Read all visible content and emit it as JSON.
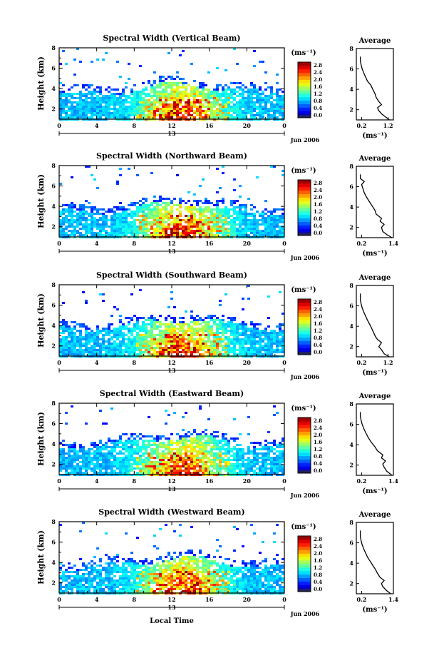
{
  "figure": {
    "x_axis_label": "Local Time",
    "date_label": "Jun 2006",
    "mid_day_label": "13",
    "height_label": "Height (km)",
    "colorbar_unit": "(ms⁻¹)",
    "avg_title": "Average",
    "avg_unit": "(ms⁻¹)"
  },
  "chart_data": [
    {
      "type": "heatmap",
      "title": "Spectral Width (Vertical Beam)",
      "xlabel": "",
      "ylabel": "Height (km)",
      "x_ticks": [
        "0",
        "4",
        "8",
        "12",
        "16",
        "20",
        "0"
      ],
      "xlim": [
        0,
        24
      ],
      "y_ticks": [
        "2",
        "4",
        "6",
        "8"
      ],
      "ylim": [
        1,
        8
      ],
      "colorbar": {
        "ticks": [
          "0.0",
          "0.4",
          "0.8",
          "1.2",
          "1.6",
          "2.0",
          "2.4",
          "2.8"
        ],
        "range": [
          0,
          3.0
        ]
      },
      "profile": {
        "title": "Average",
        "xlim": [
          0.0,
          1.4
        ],
        "x_ticks": [
          "0.2",
          "1.2"
        ],
        "y_ticks": [
          "2",
          "4",
          "6",
          "8"
        ],
        "points": [
          [
            1.25,
            1.0
          ],
          [
            1.1,
            1.3
          ],
          [
            0.95,
            1.6
          ],
          [
            0.85,
            1.9
          ],
          [
            0.8,
            2.2
          ],
          [
            0.95,
            2.5
          ],
          [
            0.85,
            2.8
          ],
          [
            0.75,
            3.2
          ],
          [
            0.7,
            3.6
          ],
          [
            0.62,
            4.0
          ],
          [
            0.55,
            4.4
          ],
          [
            0.42,
            4.8
          ],
          [
            0.35,
            5.2
          ],
          [
            0.28,
            5.6
          ],
          [
            0.22,
            6.0
          ],
          [
            0.18,
            6.4
          ],
          [
            0.15,
            6.8
          ],
          [
            0.15,
            7.2
          ]
        ]
      }
    },
    {
      "type": "heatmap",
      "title": "Spectral Width (Northward Beam)",
      "xlabel": "",
      "ylabel": "Height (km)",
      "x_ticks": [
        "0",
        "4",
        "8",
        "12",
        "16",
        "20",
        "0"
      ],
      "xlim": [
        0,
        24
      ],
      "y_ticks": [
        "2",
        "4",
        "6",
        "8"
      ],
      "ylim": [
        1,
        8
      ],
      "colorbar": {
        "ticks": [
          "0.0",
          "0.4",
          "0.8",
          "1.2",
          "1.6",
          "2.0",
          "2.4",
          "2.8"
        ],
        "range": [
          0,
          3.0
        ]
      },
      "profile": {
        "title": "Average",
        "xlim": [
          0.0,
          1.4
        ],
        "x_ticks": [
          "0.2",
          "1.4"
        ],
        "y_ticks": [
          "2",
          "4",
          "6",
          "8"
        ],
        "points": [
          [
            1.35,
            1.0
          ],
          [
            1.15,
            1.3
          ],
          [
            1.0,
            1.6
          ],
          [
            0.95,
            2.0
          ],
          [
            1.05,
            2.3
          ],
          [
            0.9,
            2.6
          ],
          [
            0.95,
            2.9
          ],
          [
            0.75,
            3.3
          ],
          [
            0.7,
            3.7
          ],
          [
            0.6,
            4.1
          ],
          [
            0.5,
            4.5
          ],
          [
            0.38,
            5.0
          ],
          [
            0.3,
            5.4
          ],
          [
            0.25,
            5.8
          ],
          [
            0.2,
            6.2
          ],
          [
            0.3,
            6.5
          ],
          [
            0.15,
            6.8
          ],
          [
            0.15,
            7.2
          ]
        ]
      }
    },
    {
      "type": "heatmap",
      "title": "Spectral Width (Southward Beam)",
      "xlabel": "",
      "ylabel": "Height (km)",
      "x_ticks": [
        "0",
        "4",
        "8",
        "12",
        "16",
        "20",
        "0"
      ],
      "xlim": [
        0,
        24
      ],
      "y_ticks": [
        "2",
        "4",
        "6",
        "8"
      ],
      "ylim": [
        1,
        8
      ],
      "colorbar": {
        "ticks": [
          "0.0",
          "0.4",
          "0.8",
          "1.2",
          "1.6",
          "2.0",
          "2.4",
          "2.8"
        ],
        "range": [
          0,
          3.0
        ]
      },
      "profile": {
        "title": "Average",
        "xlim": [
          0.0,
          1.4
        ],
        "x_ticks": [
          "0.2",
          "1.2"
        ],
        "y_ticks": [
          "2",
          "4",
          "6",
          "8"
        ],
        "points": [
          [
            1.25,
            1.0
          ],
          [
            1.05,
            1.3
          ],
          [
            0.95,
            1.7
          ],
          [
            0.85,
            2.0
          ],
          [
            0.95,
            2.4
          ],
          [
            0.8,
            2.7
          ],
          [
            0.72,
            3.0
          ],
          [
            0.65,
            3.4
          ],
          [
            0.58,
            3.8
          ],
          [
            0.5,
            4.2
          ],
          [
            0.42,
            4.6
          ],
          [
            0.35,
            5.0
          ],
          [
            0.28,
            5.4
          ],
          [
            0.22,
            5.8
          ],
          [
            0.18,
            6.2
          ],
          [
            0.15,
            6.6
          ],
          [
            0.15,
            7.2
          ]
        ]
      }
    },
    {
      "type": "heatmap",
      "title": "Spectral Width (Eastward Beam)",
      "xlabel": "",
      "ylabel": "Height (km)",
      "x_ticks": [
        "0",
        "4",
        "8",
        "12",
        "16",
        "20",
        "0"
      ],
      "xlim": [
        0,
        24
      ],
      "y_ticks": [
        "2",
        "4",
        "6",
        "8"
      ],
      "ylim": [
        1,
        8
      ],
      "colorbar": {
        "ticks": [
          "0.0",
          "0.4",
          "0.8",
          "1.2",
          "1.6",
          "2.0",
          "2.4",
          "2.8"
        ],
        "range": [
          0,
          3.0
        ]
      },
      "profile": {
        "title": "Average",
        "xlim": [
          0.0,
          1.4
        ],
        "x_ticks": [
          "0.2",
          "1.4"
        ],
        "y_ticks": [
          "2",
          "4",
          "6",
          "8"
        ],
        "points": [
          [
            1.35,
            1.0
          ],
          [
            1.15,
            1.4
          ],
          [
            1.05,
            1.8
          ],
          [
            1.0,
            2.1
          ],
          [
            1.1,
            2.4
          ],
          [
            0.95,
            2.7
          ],
          [
            1.0,
            3.0
          ],
          [
            0.8,
            3.4
          ],
          [
            0.7,
            3.8
          ],
          [
            0.55,
            4.3
          ],
          [
            0.45,
            4.7
          ],
          [
            0.35,
            5.2
          ],
          [
            0.28,
            5.6
          ],
          [
            0.22,
            6.0
          ],
          [
            0.18,
            6.4
          ],
          [
            0.15,
            6.8
          ],
          [
            0.15,
            7.2
          ]
        ]
      }
    },
    {
      "type": "heatmap",
      "title": "Spectral Width (Westward Beam)",
      "xlabel": "Local Time",
      "ylabel": "Height (km)",
      "x_ticks": [
        "0",
        "4",
        "8",
        "12",
        "16",
        "20",
        "0"
      ],
      "xlim": [
        0,
        24
      ],
      "y_ticks": [
        "2",
        "4",
        "6",
        "8"
      ],
      "ylim": [
        1,
        8
      ],
      "colorbar": {
        "ticks": [
          "0.0",
          "0.4",
          "0.8",
          "1.2",
          "1.6",
          "2.0",
          "2.4",
          "2.8"
        ],
        "range": [
          0,
          3.0
        ]
      },
      "profile": {
        "title": "Average",
        "xlim": [
          0.0,
          1.4
        ],
        "x_ticks": [
          "0.2",
          "1.4"
        ],
        "y_ticks": [
          "2",
          "4",
          "6",
          "8"
        ],
        "points": [
          [
            1.3,
            1.0
          ],
          [
            1.15,
            1.3
          ],
          [
            1.0,
            1.7
          ],
          [
            0.95,
            2.0
          ],
          [
            1.05,
            2.3
          ],
          [
            0.9,
            2.6
          ],
          [
            0.8,
            3.0
          ],
          [
            0.72,
            3.4
          ],
          [
            0.62,
            3.8
          ],
          [
            0.52,
            4.2
          ],
          [
            0.42,
            4.6
          ],
          [
            0.35,
            5.0
          ],
          [
            0.28,
            5.4
          ],
          [
            0.22,
            5.8
          ],
          [
            0.18,
            6.2
          ],
          [
            0.15,
            6.6
          ],
          [
            0.15,
            7.2
          ]
        ]
      }
    }
  ]
}
